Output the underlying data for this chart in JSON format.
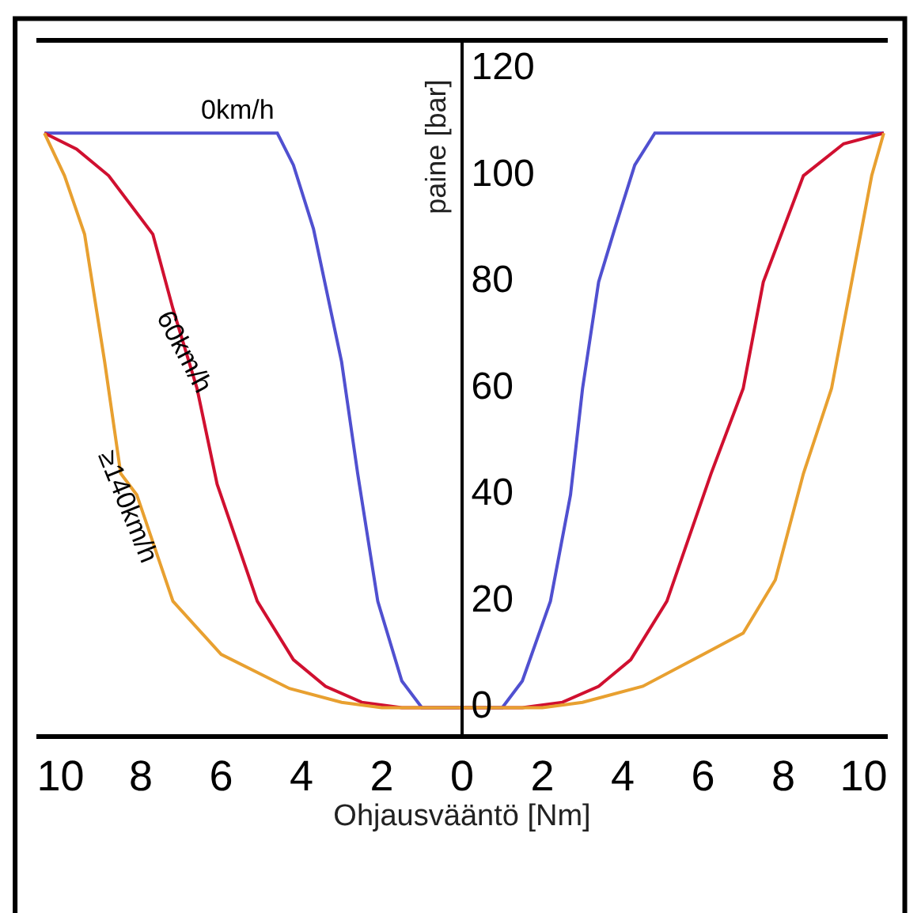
{
  "chart_data": {
    "type": "line",
    "xlabel": "Ohjausvääntö [Nm]",
    "ylabel": "paine [bar]",
    "xlim": [
      -10.6,
      10.6
    ],
    "xticks": [
      {
        "value": -10,
        "label": "10"
      },
      {
        "value": -8,
        "label": "8"
      },
      {
        "value": -6,
        "label": "6"
      },
      {
        "value": -4,
        "label": "4"
      },
      {
        "value": -2,
        "label": "2"
      },
      0,
      2,
      4,
      6,
      8,
      10
    ],
    "ylim": [
      -5,
      125
    ],
    "yticks": [
      0,
      20,
      40,
      60,
      80,
      100,
      120
    ],
    "legend": false,
    "marker": "none",
    "line_style": "solid",
    "series": [
      {
        "name": "0km/h",
        "color": "#5050d0",
        "x": [
          -10.4,
          -4.6,
          -4.2,
          -3.7,
          -3.0,
          -2.6,
          -2.1,
          -1.5,
          -1.0,
          1.0,
          1.5,
          2.2,
          2.7,
          3.0,
          3.4,
          3.8,
          4.3,
          4.8,
          10.5
        ],
        "values": [
          108,
          108,
          102,
          90,
          65,
          44,
          20,
          5,
          0,
          0,
          5,
          20,
          40,
          60,
          80,
          90,
          102,
          108,
          108
        ]
      },
      {
        "name": "60km/h",
        "color": "#d01030",
        "x": [
          -10.4,
          -9.6,
          -8.8,
          -7.7,
          -7.2,
          -6.6,
          -6.1,
          -5.1,
          -4.2,
          -3.4,
          -2.5,
          -1.5,
          0,
          1.5,
          2.5,
          3.4,
          4.2,
          5.1,
          6.2,
          7.0,
          7.5,
          8.5,
          9.5,
          10.5
        ],
        "values": [
          108,
          105,
          100,
          89,
          75,
          60,
          42,
          20,
          9,
          4,
          1,
          0,
          0,
          0,
          1,
          4,
          9,
          20,
          44,
          60,
          80,
          100,
          106,
          108
        ]
      },
      {
        "name": "≥140km/h",
        "color": "#e8a030",
        "x": [
          -10.4,
          -9.9,
          -9.4,
          -8.9,
          -8.5,
          -8.1,
          -7.2,
          -6.0,
          -4.3,
          -3.0,
          -2.0,
          0,
          2.0,
          3.0,
          4.5,
          6.0,
          7.0,
          7.8,
          8.5,
          9.2,
          9.7,
          10.2,
          10.5
        ],
        "values": [
          108,
          100,
          89,
          65,
          44,
          40,
          20,
          10,
          3.6,
          1,
          0,
          0,
          0,
          1,
          4,
          10,
          14,
          24,
          44,
          60,
          80,
          100,
          108
        ]
      }
    ]
  }
}
